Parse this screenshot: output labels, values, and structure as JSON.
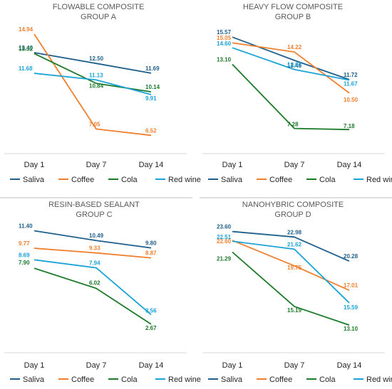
{
  "colors": {
    "Saliva": "#1f5f8b",
    "Coffee": "#f07f2e",
    "Cola": "#1c7a2a",
    "Red wine": "#1ba3d6"
  },
  "chart_data": [
    {
      "type": "line",
      "title": "FLOWABLE COMPOSITE",
      "subtitle": "GROUP A",
      "categories": [
        "Day 1",
        "Day 7",
        "Day 14"
      ],
      "legend": "bottom",
      "grid": false,
      "ylim": [
        5,
        16
      ],
      "series": [
        {
          "name": "Saliva",
          "values": [
            13.4,
            12.5,
            11.69
          ]
        },
        {
          "name": "Coffee",
          "values": [
            14.94,
            7.05,
            6.52
          ]
        },
        {
          "name": "Cola",
          "values": [
            13.32,
            10.84,
            10.14
          ]
        },
        {
          "name": "Red wine",
          "values": [
            11.68,
            11.13,
            9.91
          ]
        }
      ]
    },
    {
      "type": "line",
      "title": "HEAVY FLOW COMPOSITE",
      "subtitle": "GROUP B",
      "categories": [
        "Day 1",
        "Day 7",
        "Day 14"
      ],
      "legend": "bottom",
      "grid": false,
      "ylim": [
        5,
        17
      ],
      "series": [
        {
          "name": "Saliva",
          "values": [
            15.57,
            13.46,
            11.72
          ]
        },
        {
          "name": "Coffee",
          "values": [
            15.05,
            14.22,
            10.5
          ]
        },
        {
          "name": "Cola",
          "values": [
            13.1,
            7.28,
            7.18
          ]
        },
        {
          "name": "Red wine",
          "values": [
            14.6,
            12.63,
            11.67
          ]
        }
      ]
    },
    {
      "type": "line",
      "title": "RESIN-BASED SEALANT",
      "subtitle": "GROUP C",
      "categories": [
        "Day 1",
        "Day 7",
        "Day 14"
      ],
      "legend": "bottom",
      "grid": false,
      "ylim": [
        0,
        12.5
      ],
      "series": [
        {
          "name": "Saliva",
          "values": [
            11.4,
            10.49,
            9.8
          ]
        },
        {
          "name": "Coffee",
          "values": [
            9.77,
            9.33,
            8.87
          ]
        },
        {
          "name": "Cola",
          "values": [
            7.9,
            6.02,
            2.67
          ]
        },
        {
          "name": "Red wine",
          "values": [
            8.69,
            7.94,
            3.56
          ]
        }
      ]
    },
    {
      "type": "line",
      "title": "NANOHYBRIC COMPOSITE",
      "subtitle": "GROUP D",
      "categories": [
        "Day 1",
        "Day 7",
        "Day 14"
      ],
      "legend": "bottom",
      "grid": false,
      "ylim": [
        10,
        25
      ],
      "series": [
        {
          "name": "Saliva",
          "values": [
            23.6,
            22.98,
            20.28
          ]
        },
        {
          "name": "Coffee",
          "values": [
            22.6,
            19.75,
            17.01
          ]
        },
        {
          "name": "Cola",
          "values": [
            21.29,
            15.19,
            13.1
          ]
        },
        {
          "name": "Red wine",
          "values": [
            22.51,
            21.62,
            15.59
          ]
        }
      ]
    }
  ]
}
